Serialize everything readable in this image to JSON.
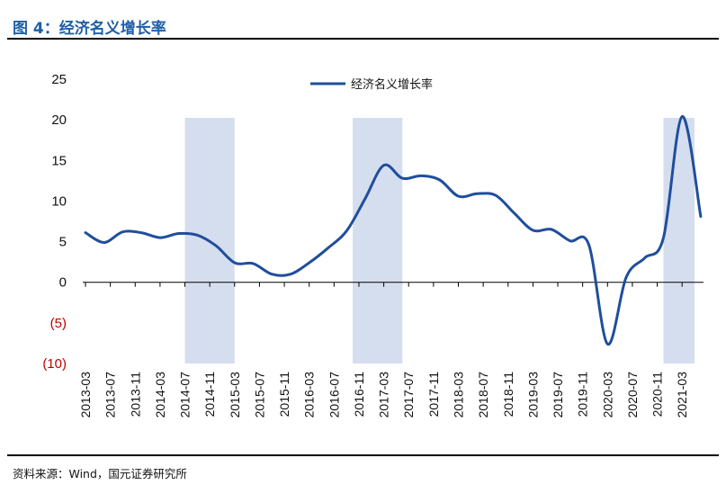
{
  "figure": {
    "title": "图 4：经济名义增长率",
    "source": "资料来源：Wind，国元证券研究所"
  },
  "colors": {
    "title": "#1f5fa8",
    "line": "#1f4e9c",
    "shade": "#d5deef",
    "negative_tick": "#c00000"
  },
  "chart_data": {
    "type": "line",
    "title": "",
    "xlabel": "",
    "ylabel": "",
    "ylim": [
      -10,
      25
    ],
    "y_ticks": [
      {
        "value": 25,
        "label": "25"
      },
      {
        "value": 20,
        "label": "20"
      },
      {
        "value": 15,
        "label": "15"
      },
      {
        "value": 10,
        "label": "10"
      },
      {
        "value": 5,
        "label": "5"
      },
      {
        "value": 0,
        "label": "0"
      },
      {
        "value": -5,
        "label": "(5)"
      },
      {
        "value": -10,
        "label": "(10)"
      }
    ],
    "x_ticks": [
      "2013-03",
      "2013-07",
      "2013-11",
      "2014-03",
      "2014-07",
      "2014-11",
      "2015-03",
      "2015-07",
      "2015-11",
      "2016-03",
      "2016-07",
      "2016-11",
      "2017-03",
      "2017-07",
      "2017-11",
      "2018-03",
      "2018-07",
      "2018-11",
      "2019-03",
      "2019-07",
      "2019-11",
      "2020-03",
      "2020-07",
      "2020-11",
      "2021-03"
    ],
    "legend_position": "top-center",
    "grid": false,
    "shaded_periods": [
      {
        "start": "2014-07",
        "end": "2015-03"
      },
      {
        "start": "2016-10",
        "end": "2017-06"
      },
      {
        "start": "2020-12",
        "end": "2021-05"
      }
    ],
    "series": [
      {
        "name": "经济名义增长率",
        "x": [
          "2013-03",
          "2013-06",
          "2013-09",
          "2013-12",
          "2014-03",
          "2014-06",
          "2014-09",
          "2014-12",
          "2015-03",
          "2015-06",
          "2015-09",
          "2015-12",
          "2016-03",
          "2016-06",
          "2016-09",
          "2016-12",
          "2017-03",
          "2017-06",
          "2017-09",
          "2017-12",
          "2018-03",
          "2018-06",
          "2018-09",
          "2018-12",
          "2019-03",
          "2019-06",
          "2019-09",
          "2019-12",
          "2020-03",
          "2020-06",
          "2020-09",
          "2020-12",
          "2021-03",
          "2021-06"
        ],
        "values": [
          6.1,
          4.9,
          6.2,
          6.1,
          5.5,
          6.0,
          5.8,
          4.5,
          2.4,
          2.3,
          1.0,
          1.0,
          2.4,
          4.2,
          6.3,
          10.3,
          14.4,
          12.8,
          13.1,
          12.6,
          10.6,
          10.9,
          10.7,
          8.5,
          6.4,
          6.5,
          5.1,
          4.6,
          -7.6,
          0.6,
          3.0,
          5.5,
          20.4,
          8.1
        ]
      }
    ]
  }
}
